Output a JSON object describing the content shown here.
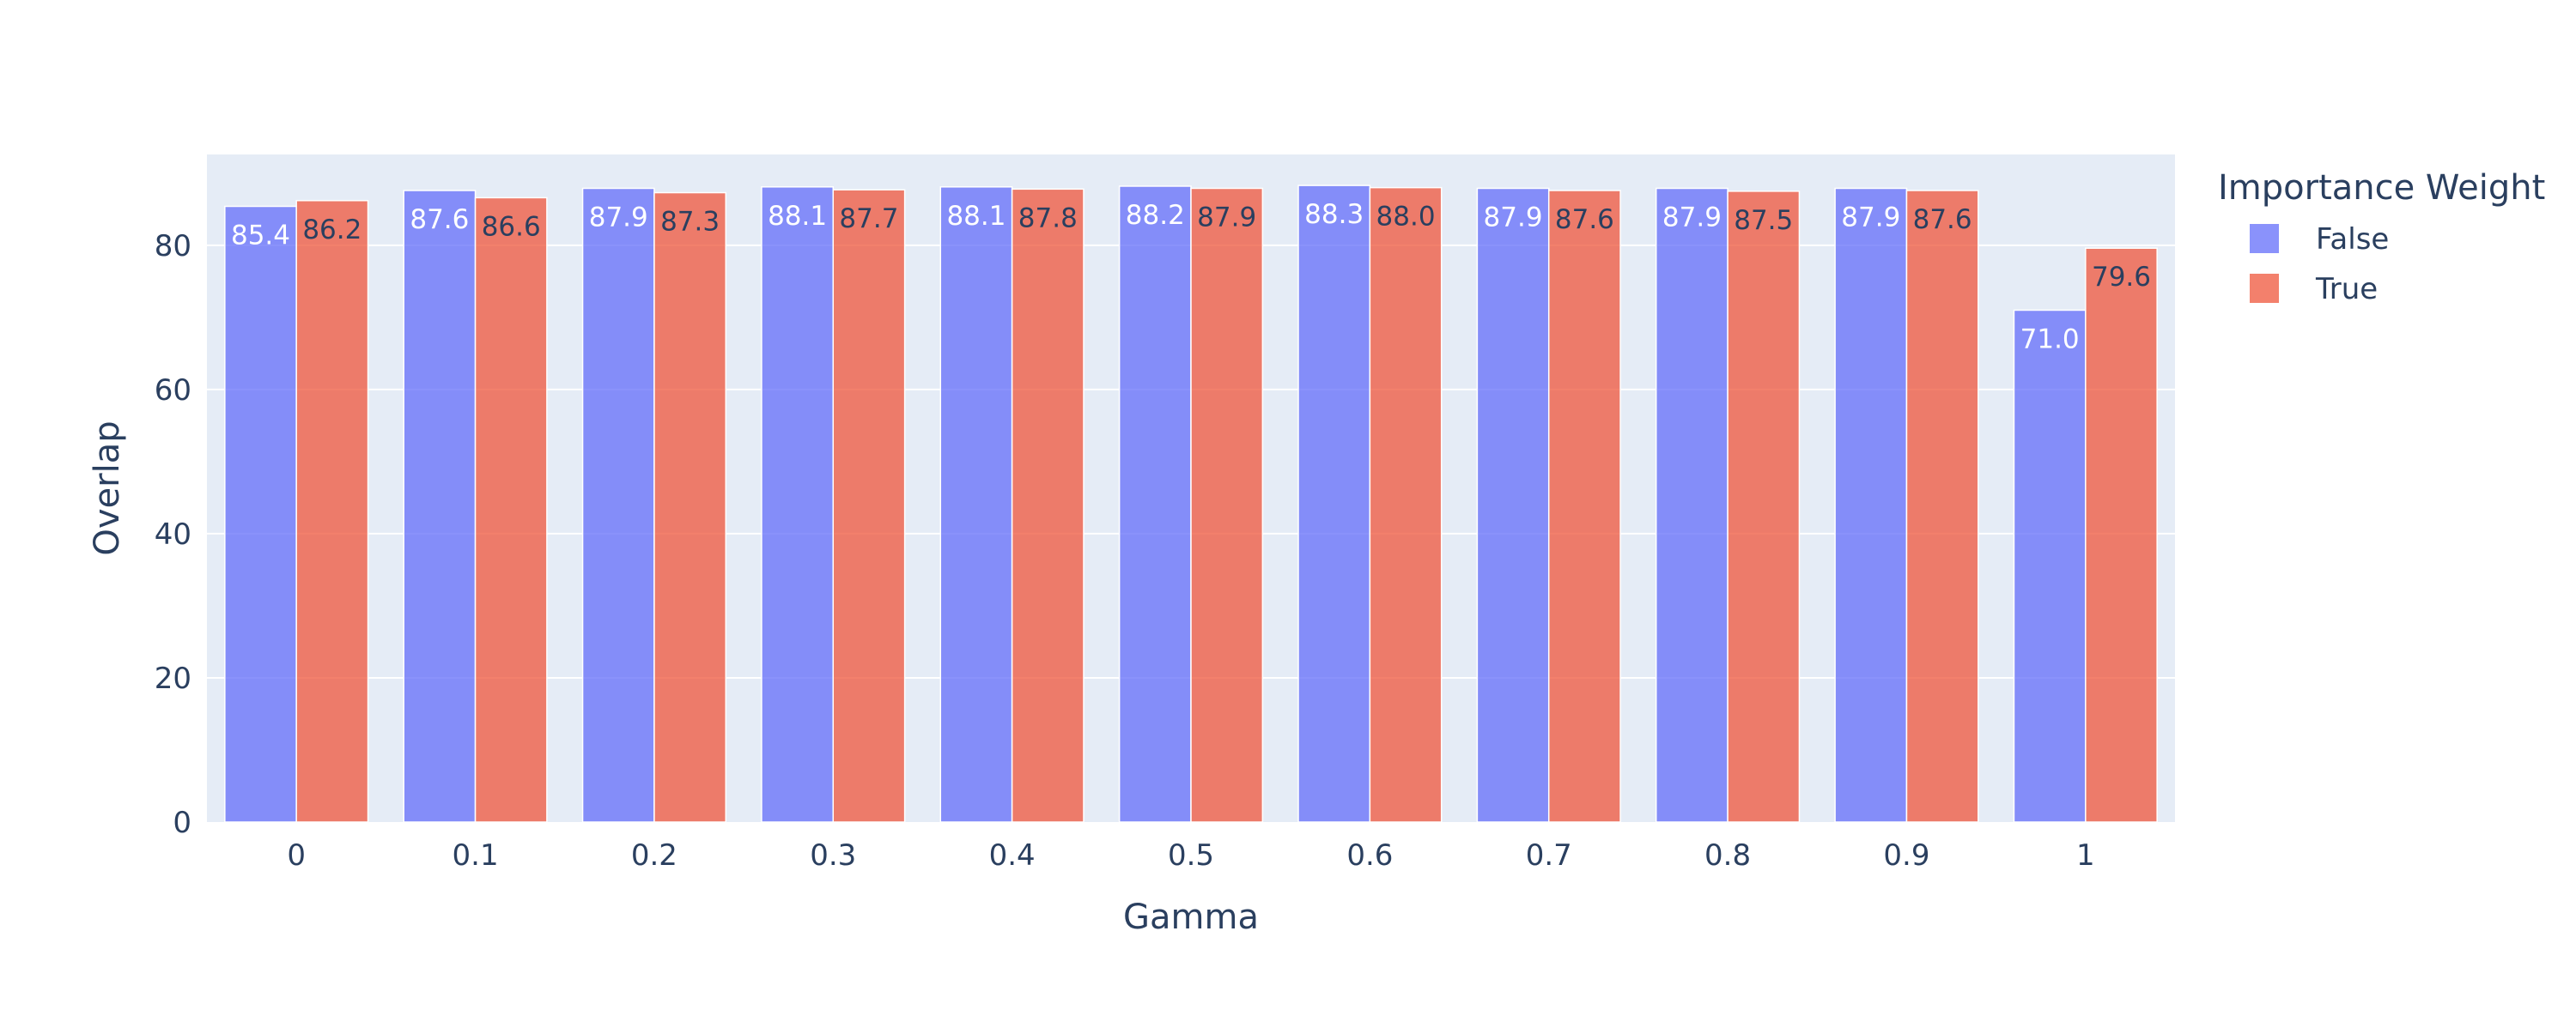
{
  "colors": {
    "plot_bg": "#e5ecf6",
    "grid": "#ffffff",
    "text": "#2a3f5f",
    "false_series": "#636efa",
    "true_series": "#ef553b"
  },
  "chart_data": {
    "type": "bar",
    "barmode": "group",
    "title": "",
    "xlabel": "Gamma",
    "ylabel": "Overlap",
    "categories": [
      "0",
      "0.1",
      "0.2",
      "0.3",
      "0.4",
      "0.5",
      "0.6",
      "0.7",
      "0.8",
      "0.9",
      "1"
    ],
    "ylim": [
      0,
      92.6
    ],
    "yticks": [
      0,
      20,
      40,
      60,
      80
    ],
    "grid": true,
    "legend": {
      "title": "Importance Weight",
      "placement": "top-right outside plot"
    },
    "series": [
      {
        "name": "False",
        "color": "#636efa",
        "values": [
          85.4,
          87.6,
          87.9,
          88.1,
          88.1,
          88.2,
          88.3,
          87.9,
          87.9,
          87.9,
          71.0
        ],
        "labels": [
          "85.4",
          "87.6",
          "87.9",
          "88.1",
          "88.1",
          "88.2",
          "88.3",
          "87.9",
          "87.9",
          "87.9",
          "71.0"
        ]
      },
      {
        "name": "True",
        "color": "#ef553b",
        "values": [
          86.2,
          86.6,
          87.3,
          87.7,
          87.8,
          87.9,
          88.0,
          87.6,
          87.5,
          87.6,
          79.6
        ],
        "labels": [
          "86.2",
          "86.6",
          "87.3",
          "87.7",
          "87.8",
          "87.9",
          "88.0",
          "87.6",
          "87.5",
          "87.6",
          "79.6"
        ]
      }
    ]
  }
}
